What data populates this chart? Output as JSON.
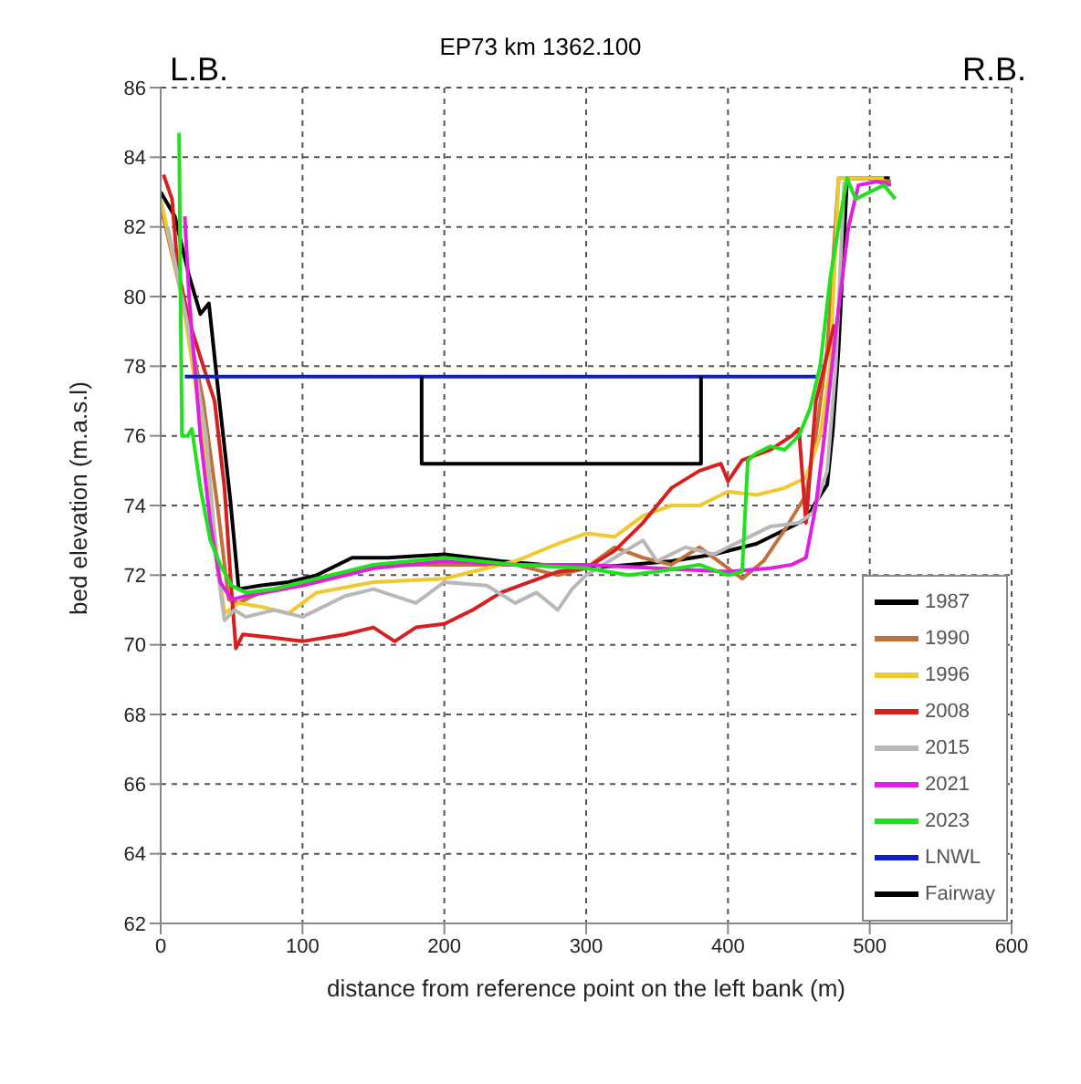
{
  "chart_data": {
    "type": "line",
    "title": "EP73 km 1362.100",
    "xlabel": "distance from reference point on the left bank (m)",
    "ylabel": "bed elevation (m.a.s.l)",
    "annotations": [
      "L.B.",
      "R.B."
    ],
    "xlim": [
      0,
      600
    ],
    "xticks": [
      0,
      100,
      200,
      300,
      400,
      500,
      600
    ],
    "ylim": [
      62,
      86
    ],
    "yticks": [
      62,
      64,
      66,
      68,
      70,
      72,
      74,
      76,
      78,
      80,
      82,
      84,
      86
    ],
    "grid": true,
    "legend": "bottom right",
    "marker": "none",
    "line_style": "solid",
    "series": [
      {
        "name": "1987",
        "color": "#000000",
        "x": [
          0,
          10,
          20,
          28,
          34,
          40,
          49,
          55,
          70,
          90,
          110,
          135,
          160,
          200,
          240,
          270,
          300,
          330,
          360,
          390,
          420,
          440,
          455,
          462,
          470,
          474,
          478,
          484,
          514
        ],
        "values": [
          83,
          82.3,
          80.6,
          79.5,
          79.8,
          77.5,
          74.2,
          71.6,
          71.7,
          71.8,
          72,
          72.5,
          72.5,
          72.6,
          72.4,
          72.3,
          72.2,
          72.3,
          72.4,
          72.6,
          72.9,
          73.3,
          73.6,
          74.1,
          74.6,
          76.2,
          78.5,
          83.4,
          83.4
        ]
      },
      {
        "name": "1990",
        "color": "#c0703a",
        "x": [
          0,
          15,
          30,
          40,
          48,
          55,
          70,
          100,
          130,
          160,
          200,
          250,
          280,
          300,
          320,
          340,
          360,
          380,
          400,
          410,
          425,
          440,
          455,
          462,
          470,
          478,
          500,
          515
        ],
        "values": [
          82.6,
          80,
          77,
          74,
          71.3,
          71.2,
          71.5,
          71.8,
          72,
          72.3,
          72.3,
          72.3,
          72,
          72.2,
          72.8,
          72.5,
          72.3,
          72.8,
          72.2,
          71.9,
          72.4,
          73.3,
          74.3,
          76,
          78.5,
          83.4,
          83.4,
          83.3
        ]
      },
      {
        "name": "1996",
        "color": "#f0c830",
        "x": [
          0,
          15,
          30,
          40,
          45,
          55,
          70,
          90,
          110,
          150,
          200,
          250,
          280,
          300,
          320,
          340,
          360,
          380,
          400,
          420,
          440,
          455,
          465,
          472,
          478,
          510
        ],
        "values": [
          82.8,
          80,
          76,
          72.5,
          70.9,
          71.2,
          71.1,
          70.9,
          71.5,
          71.8,
          71.9,
          72.4,
          72.9,
          73.2,
          73.1,
          73.7,
          74,
          74,
          74.4,
          74.3,
          74.5,
          74.8,
          76,
          78,
          83.4,
          83.4
        ]
      },
      {
        "name": "2008",
        "color": "#d42020",
        "x": [
          2,
          8,
          12,
          20,
          30,
          38,
          45,
          50,
          53,
          58,
          80,
          100,
          130,
          150,
          165,
          180,
          200,
          220,
          240,
          260,
          280,
          300,
          320,
          340,
          360,
          380,
          395,
          400,
          410,
          430,
          445,
          450,
          455,
          462,
          468,
          475
        ],
        "values": [
          83.5,
          82.8,
          80.8,
          79.3,
          78,
          77,
          74.5,
          71.5,
          69.9,
          70.3,
          70.2,
          70.1,
          70.3,
          70.5,
          70.1,
          70.5,
          70.6,
          71,
          71.5,
          71.8,
          72.1,
          72.2,
          72.7,
          73.5,
          74.5,
          75,
          75.2,
          74.7,
          75.3,
          75.6,
          76,
          76.2,
          73.5,
          77,
          78,
          79.2
        ]
      },
      {
        "name": "2015",
        "color": "#b8b8b8",
        "x": [
          5,
          20,
          32,
          40,
          45,
          52,
          60,
          80,
          100,
          130,
          150,
          180,
          200,
          230,
          250,
          265,
          280,
          290,
          300,
          320,
          340,
          350,
          370,
          390,
          410,
          430,
          450,
          460,
          470,
          476,
          482
        ],
        "values": [
          82,
          79,
          76,
          72.2,
          70.7,
          71,
          70.8,
          71,
          70.8,
          71.4,
          71.6,
          71.2,
          71.8,
          71.7,
          71.2,
          71.5,
          71,
          71.6,
          72,
          72.5,
          73,
          72.4,
          72.8,
          72.6,
          73,
          73.4,
          73.5,
          73.8,
          75,
          78,
          83.3
        ]
      },
      {
        "name": "2021",
        "color": "#e020e0",
        "x": [
          17,
          20,
          24,
          28,
          35,
          42,
          50,
          60,
          100,
          150,
          200,
          250,
          300,
          350,
          400,
          430,
          445,
          455,
          462,
          468,
          476,
          485,
          492,
          505,
          515
        ],
        "values": [
          82.3,
          80,
          78,
          76,
          73.5,
          71.8,
          71.3,
          71.4,
          71.7,
          72.2,
          72.4,
          72.3,
          72.3,
          72.2,
          72.1,
          72.2,
          72.3,
          72.5,
          74,
          76,
          79,
          82,
          83.2,
          83.3,
          83.2
        ]
      },
      {
        "name": "2023",
        "color": "#20e020",
        "x": [
          13,
          14,
          15,
          19,
          22,
          28,
          35,
          42,
          50,
          60,
          80,
          100,
          150,
          200,
          250,
          300,
          330,
          350,
          380,
          400,
          410,
          414,
          420,
          430,
          440,
          450,
          458,
          465,
          472,
          478,
          484,
          490,
          500,
          510,
          518
        ],
        "values": [
          84.7,
          80,
          76,
          76,
          76.2,
          74.5,
          73,
          72.3,
          71.7,
          71.5,
          71.6,
          71.8,
          72.3,
          72.5,
          72.3,
          72.2,
          72,
          72.1,
          72.3,
          72,
          72.1,
          75.3,
          75.5,
          75.7,
          75.6,
          76,
          76.8,
          78,
          80.5,
          82,
          83.4,
          82.8,
          83,
          83.2,
          82.8
        ]
      },
      {
        "name": "LNWL",
        "color": "#1020c0",
        "x": [
          17,
          462
        ],
        "values": [
          77.7,
          77.7
        ]
      },
      {
        "name": "Fairway",
        "color": "#000000",
        "x": [
          184,
          184,
          381,
          381
        ],
        "values": [
          77.7,
          75.2,
          75.2,
          77.7
        ]
      }
    ]
  }
}
